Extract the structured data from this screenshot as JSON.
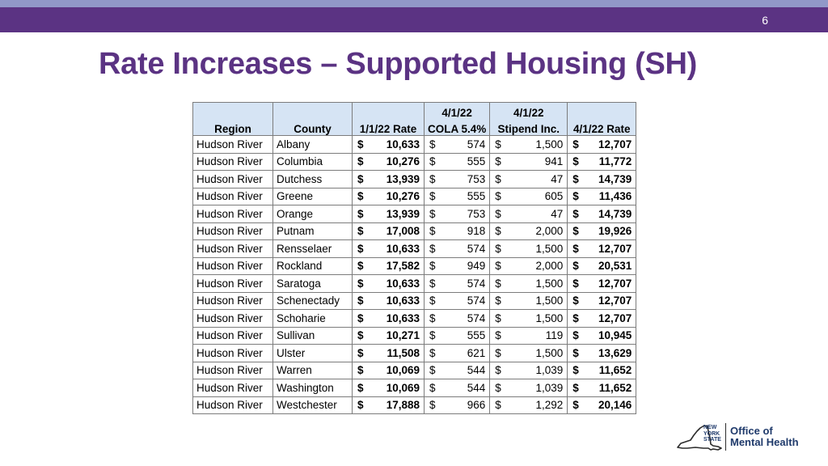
{
  "slide": {
    "page_number": "6",
    "title": "Rate Increases – Supported Housing (SH)"
  },
  "table": {
    "headers_top": [
      "",
      "",
      "",
      "4/1/22",
      "4/1/22",
      ""
    ],
    "headers": [
      "Region",
      "County",
      "1/1/22 Rate",
      "COLA 5.4%",
      "Stipend Inc.",
      "4/1/22 Rate"
    ],
    "currency": "$",
    "rows": [
      {
        "region": "Hudson River",
        "county": "Albany",
        "rate_jan": "10,633",
        "cola": "574",
        "stipend": "1,500",
        "rate_apr": "12,707"
      },
      {
        "region": "Hudson River",
        "county": "Columbia",
        "rate_jan": "10,276",
        "cola": "555",
        "stipend": "941",
        "rate_apr": "11,772"
      },
      {
        "region": "Hudson River",
        "county": "Dutchess",
        "rate_jan": "13,939",
        "cola": "753",
        "stipend": "47",
        "rate_apr": "14,739"
      },
      {
        "region": "Hudson River",
        "county": "Greene",
        "rate_jan": "10,276",
        "cola": "555",
        "stipend": "605",
        "rate_apr": "11,436"
      },
      {
        "region": "Hudson River",
        "county": "Orange",
        "rate_jan": "13,939",
        "cola": "753",
        "stipend": "47",
        "rate_apr": "14,739"
      },
      {
        "region": "Hudson River",
        "county": "Putnam",
        "rate_jan": "17,008",
        "cola": "918",
        "stipend": "2,000",
        "rate_apr": "19,926"
      },
      {
        "region": "Hudson River",
        "county": "Rensselaer",
        "rate_jan": "10,633",
        "cola": "574",
        "stipend": "1,500",
        "rate_apr": "12,707"
      },
      {
        "region": "Hudson River",
        "county": "Rockland",
        "rate_jan": "17,582",
        "cola": "949",
        "stipend": "2,000",
        "rate_apr": "20,531"
      },
      {
        "region": "Hudson River",
        "county": "Saratoga",
        "rate_jan": "10,633",
        "cola": "574",
        "stipend": "1,500",
        "rate_apr": "12,707"
      },
      {
        "region": "Hudson River",
        "county": "Schenectady",
        "rate_jan": "10,633",
        "cola": "574",
        "stipend": "1,500",
        "rate_apr": "12,707"
      },
      {
        "region": "Hudson River",
        "county": "Schoharie",
        "rate_jan": "10,633",
        "cola": "574",
        "stipend": "1,500",
        "rate_apr": "12,707"
      },
      {
        "region": "Hudson River",
        "county": "Sullivan",
        "rate_jan": "10,271",
        "cola": "555",
        "stipend": "119",
        "rate_apr": "10,945"
      },
      {
        "region": "Hudson River",
        "county": "Ulster",
        "rate_jan": "11,508",
        "cola": "621",
        "stipend": "1,500",
        "rate_apr": "13,629"
      },
      {
        "region": "Hudson River",
        "county": "Warren",
        "rate_jan": "10,069",
        "cola": "544",
        "stipend": "1,039",
        "rate_apr": "11,652"
      },
      {
        "region": "Hudson River",
        "county": "Washington",
        "rate_jan": "10,069",
        "cola": "544",
        "stipend": "1,039",
        "rate_apr": "11,652"
      },
      {
        "region": "Hudson River",
        "county": "Westchester",
        "rate_jan": "17,888",
        "cola": "966",
        "stipend": "1,292",
        "rate_apr": "20,146"
      }
    ]
  },
  "logo": {
    "state_lines": [
      "NEW",
      "YORK",
      "STATE"
    ],
    "agency_lines": [
      "Office of",
      "Mental Health"
    ]
  },
  "colors": {
    "header_bar": "#5b3383",
    "top_stripe": "#9198c8",
    "title": "#5b3383",
    "table_header_bg": "#d6e4f4",
    "logo_text": "#1f3a6b"
  }
}
